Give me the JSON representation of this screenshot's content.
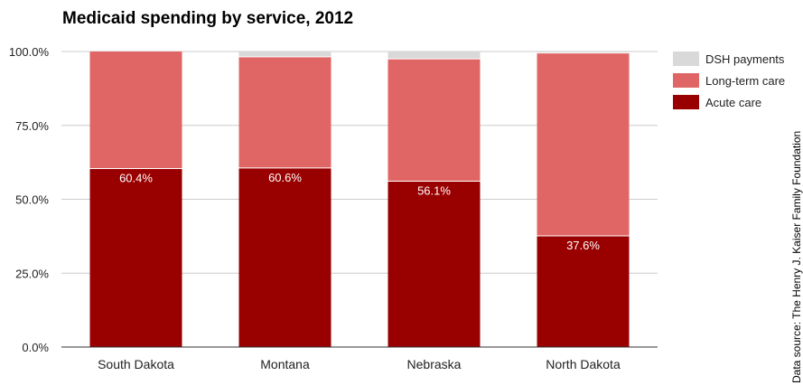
{
  "chart_data": {
    "type": "bar",
    "stacked": true,
    "title": "Medicaid spending by service, 2012",
    "categories": [
      "South Dakota",
      "Montana",
      "Nebraska",
      "North Dakota"
    ],
    "series": [
      {
        "name": "Acute care",
        "color": "#990000",
        "values": [
          60.4,
          60.6,
          56.1,
          37.6
        ]
      },
      {
        "name": "Long-term care",
        "color": "#e06666",
        "values": [
          39.6,
          37.6,
          41.4,
          61.9
        ]
      },
      {
        "name": "DSH payments",
        "color": "#d9d9d9",
        "values": [
          0.0,
          1.8,
          2.5,
          0.5
        ]
      }
    ],
    "data_labels": [
      "60.4%",
      "60.6%",
      "56.1%",
      "37.6%"
    ],
    "ylim": [
      0,
      100
    ],
    "yticks": [
      "0.0%",
      "25.0%",
      "50.0%",
      "75.0%",
      "100.0%"
    ],
    "ytick_values": [
      0,
      25,
      50,
      75,
      100
    ],
    "legend_position": "right",
    "grid": true,
    "source_note": "Data source: The Henry J. Kaiser Family Foundation"
  }
}
